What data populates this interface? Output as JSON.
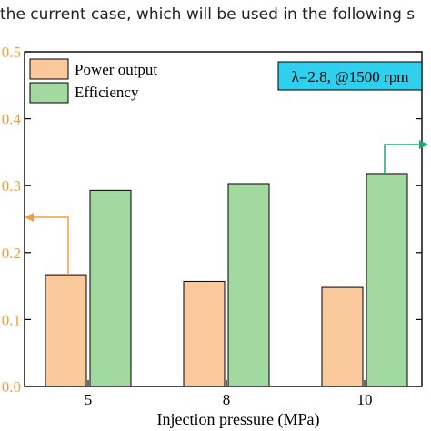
{
  "caption": "the current case, which will be used in the following s",
  "chart_data": {
    "type": "bar",
    "categories": [
      "5",
      "8",
      "10"
    ],
    "series": [
      {
        "name": "Power output",
        "values": [
          0.167,
          0.157,
          0.148
        ],
        "color": "#f9c89b",
        "axis": "left"
      },
      {
        "name": "Efficiency",
        "values": [
          0.293,
          0.303,
          0.318
        ],
        "color": "#a2d9a0",
        "axis": "right"
      }
    ],
    "xlabel": "Injection pressure (MPa)",
    "ylim": [
      0,
      0.5
    ],
    "left_ticks": [
      "0.0",
      "0.1",
      "0.2",
      "0.3",
      "0.4",
      "0.5"
    ],
    "left_axis_color": "#f0a040",
    "right_axis_color": "#1aaa6a",
    "annotation": "λ=2.8, @1500 rpm",
    "annotation_bg": "#2ed0ee",
    "legend_position": "top-left"
  }
}
